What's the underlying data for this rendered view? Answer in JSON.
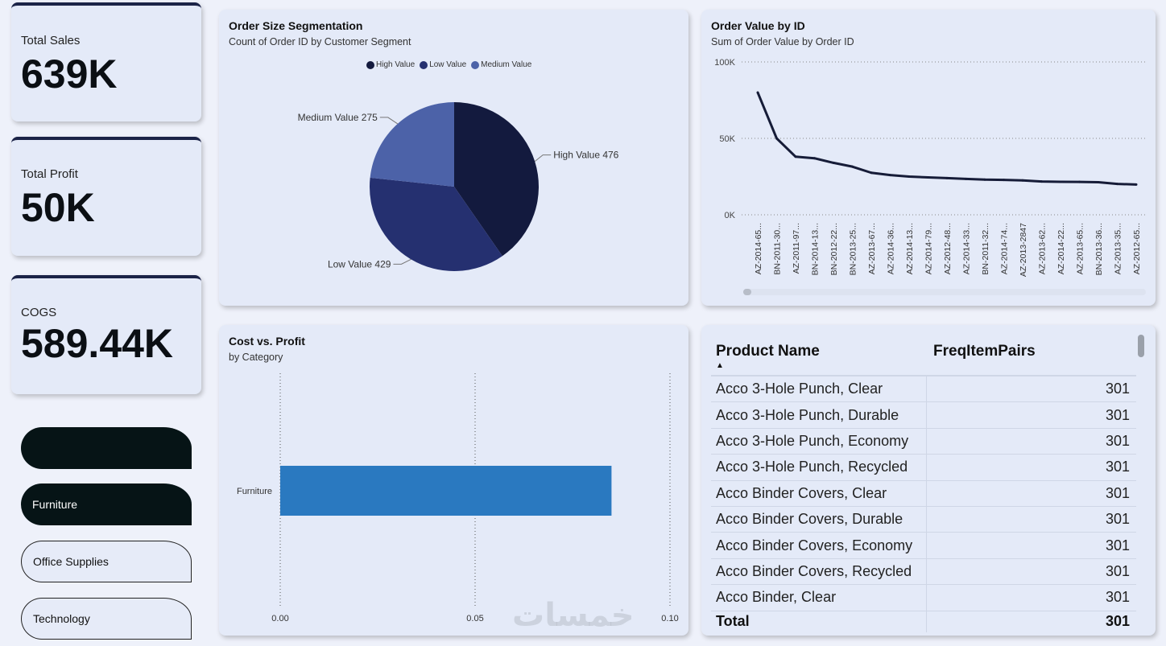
{
  "kpis": {
    "sales": {
      "label": "Total Sales",
      "value": "639K"
    },
    "profit": {
      "label": "Total Profit",
      "value": "50K"
    },
    "cogs": {
      "label": "COGS",
      "value": "589.44K"
    }
  },
  "slicer": {
    "items": [
      {
        "label": "",
        "selected": true
      },
      {
        "label": "Furniture",
        "selected": true
      },
      {
        "label": "Office Supplies",
        "selected": false
      },
      {
        "label": "Technology",
        "selected": false
      }
    ]
  },
  "pie_panel": {
    "title": "Order Size Segmentation",
    "subtitle": "Count of Order ID by Customer Segment"
  },
  "line_panel": {
    "title": "Order Value by ID",
    "subtitle": "Sum of Order Value by Order ID"
  },
  "bar_panel": {
    "title": "Cost vs. Profit",
    "subtitle": "by Category"
  },
  "colors": {
    "high": "#131a3e",
    "low": "#253070",
    "medium": "#4c62a8",
    "bar": "#2a79c0",
    "line": "#161c38"
  },
  "chart_data": [
    {
      "type": "pie",
      "title": "Order Size Segmentation",
      "subtitle": "Count of Order ID by Customer Segment",
      "legend_position": "top-center",
      "slices": [
        {
          "label": "High Value",
          "value": 476
        },
        {
          "label": "Low Value",
          "value": 429
        },
        {
          "label": "Medium Value",
          "value": 275
        }
      ],
      "data_labels": [
        "High Value 476",
        "Low Value 429",
        "Medium Value 275"
      ]
    },
    {
      "type": "line",
      "title": "Order Value by ID",
      "subtitle": "Sum of Order Value by Order ID",
      "y_ticks": [
        "100K",
        "50K",
        "0K"
      ],
      "ylim": [
        0,
        100000
      ],
      "categories": [
        "AZ-2014-65...",
        "BN-2011-30...",
        "AZ-2011-97...",
        "BN-2014-13...",
        "BN-2012-22...",
        "BN-2013-25...",
        "AZ-2013-67...",
        "AZ-2014-36...",
        "AZ-2014-13...",
        "AZ-2014-79...",
        "AZ-2012-48...",
        "AZ-2014-33...",
        "BN-2011-32...",
        "AZ-2014-74...",
        "AZ-2013-2847",
        "AZ-2013-62...",
        "AZ-2014-22...",
        "AZ-2013-65...",
        "BN-2013-36...",
        "AZ-2013-35...",
        "AZ-2012-65..."
      ],
      "values": [
        80000,
        50000,
        38000,
        37000,
        34000,
        31500,
        27500,
        26000,
        25000,
        24500,
        24000,
        23500,
        23000,
        22800,
        22500,
        21800,
        21600,
        21500,
        21300,
        20200,
        19800
      ]
    },
    {
      "type": "bar",
      "orientation": "horizontal",
      "title": "Cost vs. Profit",
      "subtitle": "by Category",
      "categories": [
        "Furniture"
      ],
      "values": [
        0.085
      ],
      "x_ticks": [
        "0.00",
        "0.05",
        "0.10"
      ],
      "xlim": [
        0,
        0.1
      ]
    }
  ],
  "table": {
    "columns": [
      "Product Name",
      "FreqItemPairs"
    ],
    "rows": [
      [
        "Acco 3-Hole Punch, Clear",
        "301"
      ],
      [
        "Acco 3-Hole Punch, Durable",
        "301"
      ],
      [
        "Acco 3-Hole Punch, Economy",
        "301"
      ],
      [
        "Acco 3-Hole Punch, Recycled",
        "301"
      ],
      [
        "Acco Binder Covers, Clear",
        "301"
      ],
      [
        "Acco Binder Covers, Durable",
        "301"
      ],
      [
        "Acco Binder Covers, Economy",
        "301"
      ],
      [
        "Acco Binder Covers, Recycled",
        "301"
      ],
      [
        "Acco Binder, Clear",
        "301"
      ]
    ],
    "total_label": "Total",
    "total_value": "301"
  },
  "watermark": "خمسات"
}
